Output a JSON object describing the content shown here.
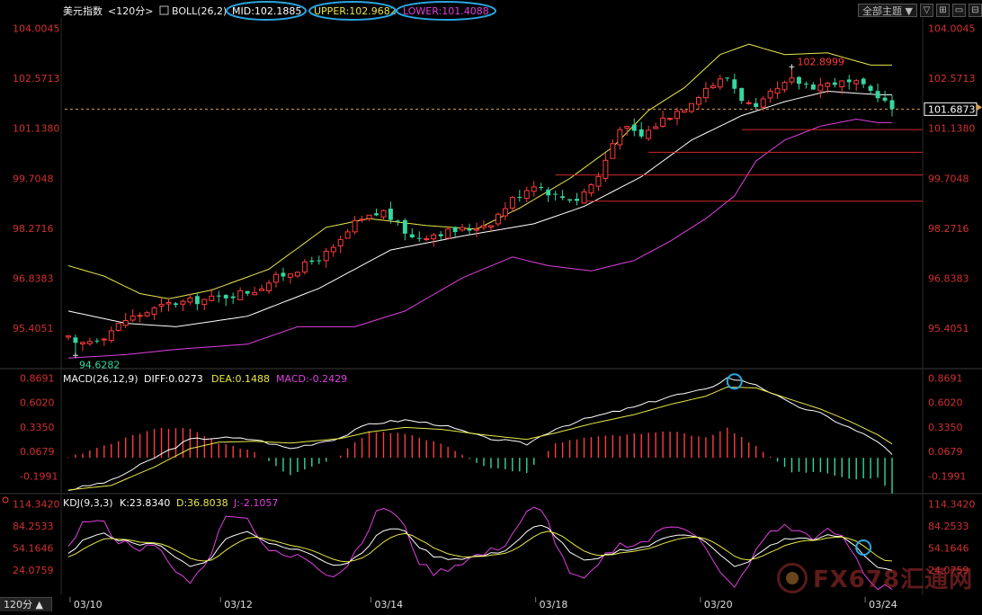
{
  "header": {
    "symbol": "美元指数",
    "period": "<120分>",
    "boll": "BOLL(26,2)",
    "mid": "MID:102.1885",
    "upper": "UPPER:102.9682",
    "lower": "LOWER:101.4088"
  },
  "toolbar": {
    "theme": "全部主题",
    "theme_arrow": "▼",
    "btn1": "▽",
    "btn2": "⊞",
    "btn3": "▭",
    "btn4": "⊟"
  },
  "period_button": "120分 ▲",
  "watermark": "FX678汇通网",
  "colors": {
    "up": "#ff3b3b",
    "down": "#36d6a0",
    "mid": "#ffffff",
    "upper": "#e8e84a",
    "lower": "#e040e0",
    "label": "#d03030",
    "circle": "#2aa6e0",
    "dash": "#d7a04a"
  },
  "chart_data": [
    {
      "type": "candlestick",
      "title": "美元指数 <120分>",
      "yticks": [
        "104.0045",
        "102.5713",
        "101.1380",
        "99.7048",
        "98.2716",
        "96.8383",
        "95.4051"
      ],
      "ylim": [
        94.3,
        104.3
      ],
      "xticks": [
        "03/10",
        "03/12",
        "03/14",
        "03/18",
        "03/20",
        "03/24"
      ],
      "xtick_index": [
        2,
        23,
        44,
        67,
        90,
        113
      ],
      "n_bars": 116,
      "current_price": "101.6873",
      "low_label": "94.6282",
      "high_label": "102.8999",
      "low_index": 1,
      "high_index": 101,
      "indicators": {
        "name": "BOLL(26,2)",
        "mid": [
          [
            0,
            95.9
          ],
          [
            8,
            95.55
          ],
          [
            15,
            95.45
          ],
          [
            25,
            95.75
          ],
          [
            35,
            96.55
          ],
          [
            45,
            97.65
          ],
          [
            55,
            98.05
          ],
          [
            65,
            98.4
          ],
          [
            72,
            98.9
          ],
          [
            80,
            99.75
          ],
          [
            87,
            100.8
          ],
          [
            94,
            101.5
          ],
          [
            100,
            101.9
          ],
          [
            106,
            102.2
          ],
          [
            113,
            102.1
          ]
        ],
        "upper": [
          [
            0,
            97.2
          ],
          [
            5,
            96.9
          ],
          [
            10,
            96.4
          ],
          [
            14,
            96.25
          ],
          [
            20,
            96.5
          ],
          [
            28,
            97.1
          ],
          [
            36,
            98.3
          ],
          [
            42,
            98.55
          ],
          [
            50,
            98.35
          ],
          [
            57,
            98.25
          ],
          [
            63,
            98.85
          ],
          [
            70,
            99.7
          ],
          [
            76,
            100.6
          ],
          [
            81,
            101.65
          ],
          [
            86,
            102.3
          ],
          [
            91,
            103.25
          ],
          [
            95,
            103.55
          ],
          [
            100,
            103.25
          ],
          [
            106,
            103.3
          ],
          [
            112,
            102.95
          ]
        ],
        "lower": [
          [
            0,
            94.55
          ],
          [
            8,
            94.65
          ],
          [
            15,
            94.8
          ],
          [
            25,
            94.95
          ],
          [
            32,
            95.45
          ],
          [
            40,
            95.45
          ],
          [
            47,
            95.9
          ],
          [
            55,
            96.85
          ],
          [
            62,
            97.45
          ],
          [
            67,
            97.2
          ],
          [
            73,
            97.05
          ],
          [
            79,
            97.35
          ],
          [
            84,
            97.9
          ],
          [
            89,
            98.55
          ],
          [
            93,
            99.2
          ],
          [
            96,
            100.2
          ],
          [
            100,
            100.8
          ],
          [
            105,
            101.2
          ],
          [
            110,
            101.4
          ],
          [
            113,
            101.3
          ]
        ]
      },
      "support_lines": [
        {
          "price": 101.1,
          "from": 94
        },
        {
          "price": 100.45,
          "from": 81
        },
        {
          "price": 99.8,
          "from": 68
        },
        {
          "price": 99.05,
          "from": 72
        }
      ],
      "current_line": 101.6873
    },
    {
      "type": "macd",
      "title": "MACD(26,12,9)",
      "diff_label": "DIFF:0.0273",
      "dea_label": "DEA:0.1488",
      "macd_label": "MACD:-0.2429",
      "yticks": [
        "0.8691",
        "0.6020",
        "0.3350",
        "0.0679",
        "-0.1991"
      ],
      "ylim": [
        -0.36,
        0.95
      ],
      "diff": [
        [
          0,
          -0.35
        ],
        [
          6,
          -0.25
        ],
        [
          12,
          0.0
        ],
        [
          17,
          0.2
        ],
        [
          21,
          0.22
        ],
        [
          26,
          0.2
        ],
        [
          31,
          0.1
        ],
        [
          38,
          0.22
        ],
        [
          42,
          0.37
        ],
        [
          47,
          0.41
        ],
        [
          52,
          0.36
        ],
        [
          58,
          0.22
        ],
        [
          64,
          0.15
        ],
        [
          68,
          0.32
        ],
        [
          73,
          0.44
        ],
        [
          79,
          0.55
        ],
        [
          84,
          0.67
        ],
        [
          89,
          0.74
        ],
        [
          92,
          0.87
        ],
        [
          96,
          0.8
        ],
        [
          101,
          0.58
        ],
        [
          105,
          0.48
        ],
        [
          109,
          0.33
        ],
        [
          113,
          0.18
        ],
        [
          115,
          0.03
        ]
      ],
      "dea": [
        [
          0,
          -0.35
        ],
        [
          6,
          -0.3
        ],
        [
          12,
          -0.1
        ],
        [
          17,
          0.1
        ],
        [
          21,
          0.17
        ],
        [
          26,
          0.18
        ],
        [
          31,
          0.16
        ],
        [
          38,
          0.21
        ],
        [
          42,
          0.28
        ],
        [
          47,
          0.33
        ],
        [
          52,
          0.31
        ],
        [
          58,
          0.25
        ],
        [
          64,
          0.2
        ],
        [
          68,
          0.27
        ],
        [
          73,
          0.37
        ],
        [
          79,
          0.47
        ],
        [
          84,
          0.58
        ],
        [
          89,
          0.67
        ],
        [
          92,
          0.77
        ],
        [
          96,
          0.76
        ],
        [
          101,
          0.63
        ],
        [
          105,
          0.53
        ],
        [
          109,
          0.4
        ],
        [
          113,
          0.25
        ],
        [
          115,
          0.15
        ]
      ],
      "circle_index": 93
    },
    {
      "type": "kdj",
      "title": "KDJ(9,3,3)",
      "k_label": "K:23.8340",
      "d_label": "D:36.8038",
      "j_label": "J:-2.1057",
      "yticks": [
        "114.3420",
        "84.2533",
        "54.1646",
        "24.0759"
      ],
      "ylim": [
        -10,
        125
      ],
      "circle_index": 111
    }
  ]
}
